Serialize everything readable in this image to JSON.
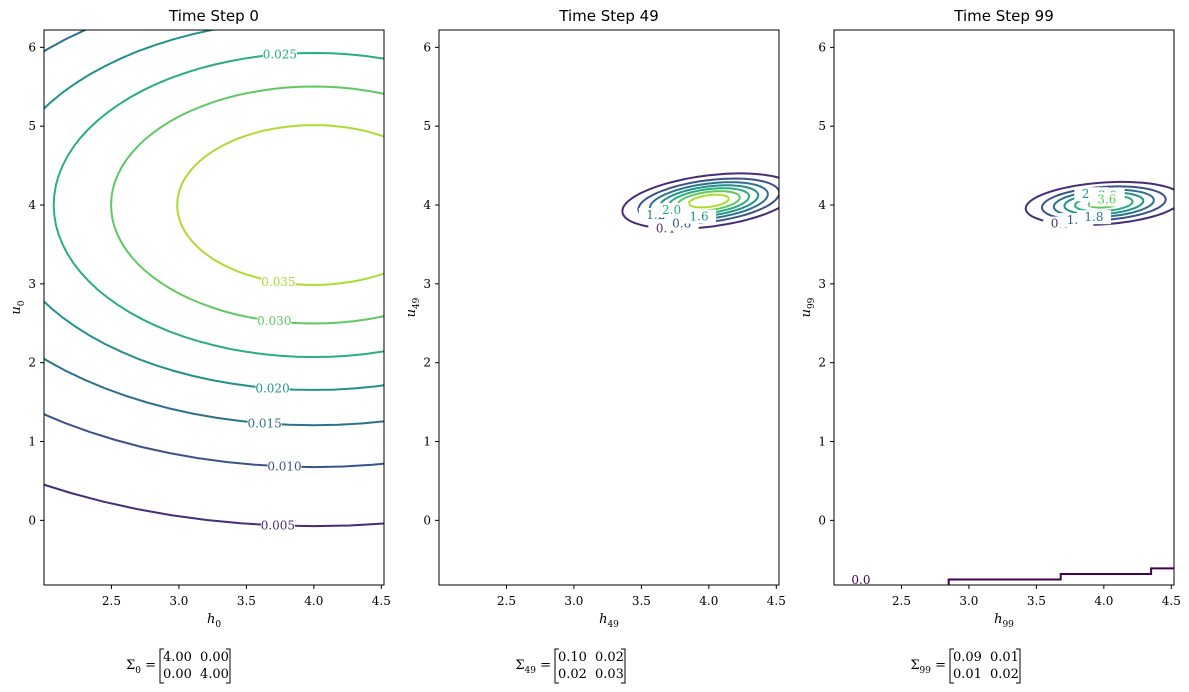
{
  "chart_data": [
    {
      "type": "contour",
      "title": "Time Step 0",
      "xlabel": {
        "var": "h",
        "sub": "0"
      },
      "ylabel": {
        "var": "u",
        "sub": "0"
      },
      "xlim": [
        2.0,
        4.52
      ],
      "ylim": [
        -0.82,
        6.22
      ],
      "xticks": [
        "2.5",
        "3.0",
        "3.5",
        "4.0",
        "4.5"
      ],
      "yticks": [
        "0",
        "1",
        "2",
        "3",
        "4",
        "5",
        "6"
      ],
      "mean": [
        4.0,
        4.0
      ],
      "cov": [
        [
          4.0,
          0.0
        ],
        [
          0.0,
          4.0
        ]
      ],
      "levels": [
        0.005,
        0.01,
        0.015,
        0.02,
        0.025,
        0.03,
        0.035
      ],
      "level_labels": [
        "0.005",
        "0.010",
        "0.015",
        "0.020",
        "0.025",
        "0.030",
        "0.035"
      ],
      "colors": [
        "#472c7a",
        "#3b528b",
        "#2c728e",
        "#21918c",
        "#28ae80",
        "#5ec962",
        "#addc30"
      ],
      "matrix_label": {
        "sym": "Σ",
        "sub": "0",
        "rows": [
          [
            "4.00",
            "0.00"
          ],
          [
            "0.00",
            "4.00"
          ]
        ]
      }
    },
    {
      "type": "contour",
      "title": "Time Step 49",
      "xlabel": {
        "var": "h",
        "sub": "49"
      },
      "ylabel": {
        "var": "u",
        "sub": "49"
      },
      "xlim": [
        2.0,
        4.52
      ],
      "ylim": [
        -0.82,
        6.22
      ],
      "xticks": [
        "2.5",
        "3.0",
        "3.5",
        "4.0",
        "4.5"
      ],
      "yticks": [
        "0",
        "1",
        "2",
        "3",
        "4",
        "5",
        "6"
      ],
      "mean": [
        4.0,
        4.05
      ],
      "cov": [
        [
          0.1,
          0.02
        ],
        [
          0.02,
          0.03
        ]
      ],
      "levels": [
        0.4,
        0.8,
        1.2,
        1.6,
        2.0,
        2.4,
        2.8
      ],
      "level_labels": [
        "0.4",
        "0.8",
        "1.2",
        "1.6",
        "2.0",
        "",
        ""
      ],
      "colors": [
        "#472c7a",
        "#3b528b",
        "#2c728e",
        "#21918c",
        "#28ae80",
        "#5ec962",
        "#addc30"
      ],
      "matrix_label": {
        "sym": "Σ",
        "sub": "49",
        "rows": [
          [
            "0.10",
            "0.02"
          ],
          [
            "0.02",
            "0.03"
          ]
        ]
      }
    },
    {
      "type": "contour",
      "title": "Time Step 99",
      "xlabel": {
        "var": "h",
        "sub": "99"
      },
      "ylabel": {
        "var": "u",
        "sub": "99"
      },
      "xlim": [
        2.0,
        4.52
      ],
      "ylim": [
        -0.82,
        6.22
      ],
      "xticks": [
        "2.5",
        "3.0",
        "3.5",
        "4.0",
        "4.5"
      ],
      "yticks": [
        "0",
        "1",
        "2",
        "3",
        "4",
        "5",
        "6"
      ],
      "mean": [
        4.0,
        4.02
      ],
      "cov": [
        [
          0.09,
          0.01
        ],
        [
          0.01,
          0.02
        ]
      ],
      "levels": [
        0.6,
        1.2,
        1.8,
        2.4,
        3.0,
        3.6,
        4.2
      ],
      "level_labels": [
        "0.6",
        "1.2",
        "1.8",
        "2.4",
        "3.0",
        "3.6",
        ""
      ],
      "colors": [
        "#472c7a",
        "#3b528b",
        "#2c728e",
        "#21918c",
        "#28ae80",
        "#5ec962",
        "#addc30"
      ],
      "zero_contour": {
        "label": "0.0",
        "color": "#440154",
        "points": [
          [
            2.0,
            -0.84
          ],
          [
            2.85,
            -0.84
          ],
          [
            2.85,
            -0.75
          ],
          [
            3.68,
            -0.75
          ],
          [
            3.68,
            -0.68
          ],
          [
            4.35,
            -0.68
          ],
          [
            4.35,
            -0.61
          ],
          [
            4.52,
            -0.61
          ]
        ]
      },
      "matrix_label": {
        "sym": "Σ",
        "sub": "99",
        "rows": [
          [
            "0.09",
            "0.01"
          ],
          [
            "0.01",
            "0.02"
          ]
        ]
      }
    }
  ]
}
